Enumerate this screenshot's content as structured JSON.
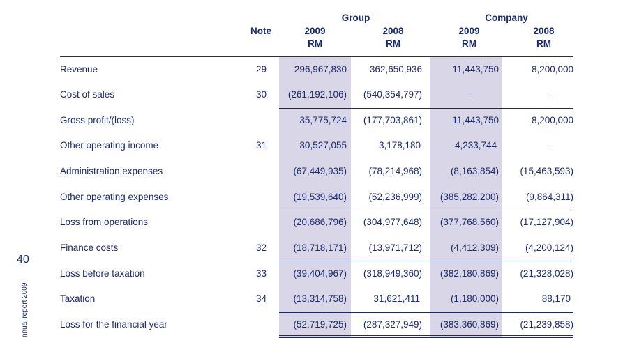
{
  "header": {
    "group_label": "Group",
    "company_label": "Company",
    "note_label": "Note",
    "columns": [
      {
        "year": "2009",
        "unit": "RM"
      },
      {
        "year": "2008",
        "unit": "RM"
      },
      {
        "year": "2009",
        "unit": "RM"
      },
      {
        "year": "2008",
        "unit": "RM"
      }
    ]
  },
  "rows": [
    {
      "label": "Revenue",
      "note": "29",
      "values": [
        "296,967,830",
        "362,650,936",
        "11,443,750",
        "8,200,000"
      ]
    },
    {
      "label": "Cost of sales",
      "note": "30",
      "values": [
        "(261,192,106)",
        "(540,354,797)",
        "-",
        "-"
      ]
    },
    {
      "label": "Gross profit/(loss)",
      "note": "",
      "values": [
        "35,775,724",
        "(177,703,861)",
        "11,443,750",
        "8,200,000"
      ]
    },
    {
      "label": "Other operating income",
      "note": "31",
      "values": [
        "30,527,055",
        "3,178,180",
        "4,233,744",
        "-"
      ]
    },
    {
      "label": "Administration expenses",
      "note": "",
      "values": [
        "(67,449,935)",
        "(78,214,968)",
        "(8,163,854)",
        "(15,463,593)"
      ]
    },
    {
      "label": "Other operating expenses",
      "note": "",
      "values": [
        "(19,539,640)",
        "(52,236,999)",
        "(385,282,200)",
        "(9,864,311)"
      ]
    },
    {
      "label": "Loss from operations",
      "note": "",
      "values": [
        "(20,686,796)",
        "(304,977,648)",
        "(377,768,560)",
        "(17,127,904)"
      ]
    },
    {
      "label": "Finance costs",
      "note": "32",
      "values": [
        "(18,718,171)",
        "(13,971,712)",
        "(4,412,309)",
        "(4,200,124)"
      ]
    },
    {
      "label": "Loss before taxation",
      "note": "33",
      "values": [
        "(39,404,967)",
        "(318,949,360)",
        "(382,180,869)",
        "(21,328,028)"
      ]
    },
    {
      "label": "Taxation",
      "note": "34",
      "values": [
        "(13,314,758)",
        "31,621,411",
        "(1,180,000)",
        "88,170"
      ]
    },
    {
      "label": "Loss for the financial year",
      "note": "",
      "values": [
        "(52,719,725)",
        "(287,327,949)",
        "(383,360,869)",
        "(21,239,858)"
      ]
    }
  ],
  "page": {
    "number": "40",
    "side_text": "nnual report 2009"
  }
}
